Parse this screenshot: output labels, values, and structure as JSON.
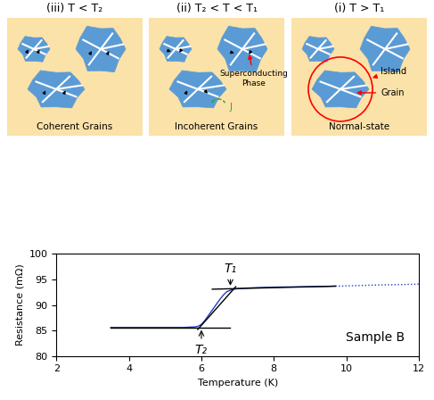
{
  "diagram": {
    "panels": [
      {
        "title": "(iii) T < T₂",
        "caption": "Coherent Grains"
      },
      {
        "title": "(ii) T₂ < T < T₁",
        "caption": "Incoherent Grains"
      },
      {
        "title": "(i) T > T₁",
        "caption": "Normal-state"
      }
    ],
    "labels": {
      "phase": "Superconducting Phase",
      "island": "Island",
      "grain": "Grain",
      "current": "J"
    }
  },
  "chart_data": {
    "type": "line",
    "xlabel": "Temperature (K)",
    "ylabel": "Resistance (mΩ)",
    "xlim": [
      2,
      12
    ],
    "xticks": [
      2,
      4,
      6,
      8,
      10,
      12
    ],
    "ylim": [
      80,
      100
    ],
    "yticks": [
      80,
      85,
      90,
      95,
      100
    ],
    "grid": false,
    "series": [
      {
        "color": "#1f3fbf",
        "line_style": "solid",
        "x": [
          3.5,
          4,
          5,
          5.5,
          5.8,
          5.9,
          6.0,
          6.1,
          6.2,
          6.3,
          6.4,
          6.5,
          6.6,
          6.7,
          6.8,
          6.9,
          7.0,
          7.2,
          7.5,
          8,
          8.5,
          9,
          9.5,
          9.7
        ],
        "values": [
          85.6,
          85.6,
          85.6,
          85.6,
          85.7,
          85.8,
          86.2,
          87.0,
          88.0,
          89.0,
          90.0,
          91.0,
          91.9,
          92.6,
          92.9,
          93.1,
          93.2,
          93.3,
          93.4,
          93.5,
          93.55,
          93.6,
          93.65,
          93.7
        ]
      },
      {
        "color": "#1f3fbf",
        "line_style": "dotted",
        "x": [
          9.7,
          10,
          10.5,
          11,
          11.5,
          12
        ],
        "values": [
          93.7,
          93.75,
          93.85,
          93.95,
          94.0,
          94.1
        ]
      },
      {
        "color": "#000000",
        "line_style": "solid",
        "x": [
          3.5,
          6.8
        ],
        "values": [
          85.6,
          85.6
        ]
      },
      {
        "color": "#000000",
        "line_style": "solid",
        "x": [
          6.3,
          9.7
        ],
        "values": [
          93.1,
          93.7
        ]
      },
      {
        "color": "#000000",
        "line_style": "solid",
        "x": [
          5.9,
          6.95
        ],
        "values": [
          85.2,
          93.6
        ]
      }
    ],
    "annotations": [
      {
        "text": "T₁",
        "x": 6.8,
        "y": 93.3
      },
      {
        "text": "T₂",
        "x": 6.0,
        "y": 85.6
      },
      {
        "text": "Sample B"
      }
    ]
  }
}
